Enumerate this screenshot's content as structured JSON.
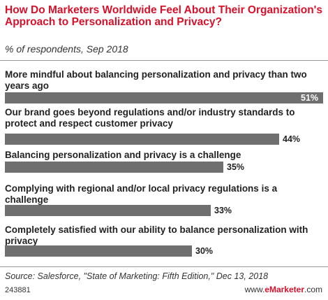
{
  "title": "How Do Marketers Worldwide Feel About Their Organization's Approach to Personalization and Privacy?",
  "subtitle": "% of respondents, Sep 2018",
  "chart_data": {
    "type": "bar",
    "orientation": "horizontal",
    "categories": [
      "More mindful about balancing personalization and privacy than two years ago",
      "Our brand goes beyond regulations and/or industry standards to protect and respect customer privacy",
      "Balancing personalization and privacy is a challenge",
      "Complying with regional and/or local privacy regulations is a challenge",
      "Completely satisfied with our ability to balance personalization with privacy"
    ],
    "values": [
      51,
      44,
      35,
      33,
      30
    ],
    "value_labels": [
      "51%",
      "44%",
      "35%",
      "33%",
      "30%"
    ],
    "bar_color": "#6f6f6f"
  },
  "footer": {
    "source": "Source: Salesforce, \"State of Marketing: Fifth Edition,\" Dec 13, 2018",
    "code": "243881",
    "brand_prefix": "www.",
    "brand_name": "eMarketer",
    "brand_suffix": ".com"
  },
  "colors": {
    "accent": "#d8112a",
    "bar": "#6f6f6f"
  }
}
